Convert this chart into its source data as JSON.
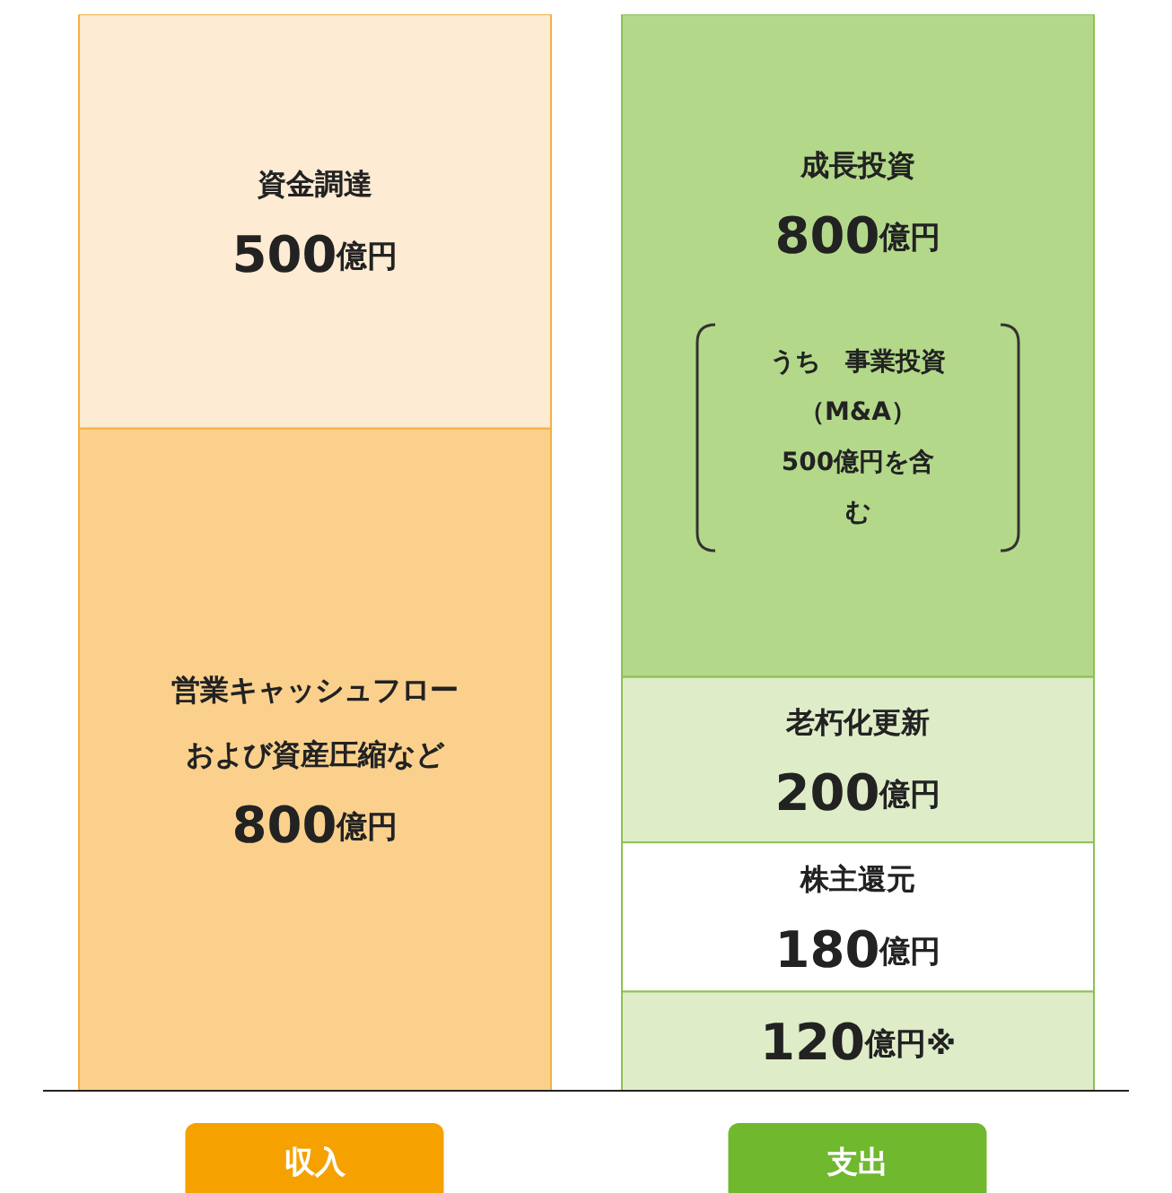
{
  "chart_data": {
    "type": "bar",
    "stacked": true,
    "categories": [
      "収入",
      "支出"
    ],
    "series": [
      {
        "name": "営業キャッシュフローおよび資産圧縮など",
        "color": "#fad08c",
        "values": [
          800,
          null
        ],
        "value_labels": [
          "800億円",
          null
        ]
      },
      {
        "name": "資金調達",
        "color": "#fdebd3",
        "values": [
          500,
          null
        ],
        "value_labels": [
          "500億円",
          null
        ]
      },
      {
        "color": "#deecc8",
        "values": [
          null,
          120
        ],
        "value_labels": [
          null,
          "120億円※"
        ]
      },
      {
        "name": "株主還元",
        "color": "#ffffff",
        "values": [
          null,
          180
        ],
        "value_labels": [
          null,
          "180億円"
        ]
      },
      {
        "name": "老朽化更新",
        "color": "#deecc8",
        "values": [
          null,
          200
        ],
        "value_labels": [
          null,
          "200億円"
        ]
      },
      {
        "name": "成長投資",
        "color": "#b3d88a",
        "values": [
          null,
          800
        ],
        "value_labels": [
          null,
          "800億円"
        ]
      }
    ],
    "annotations": [
      "うち　事業投資（M&A）500億円を含む"
    ],
    "legend": false,
    "grid": false
  }
}
